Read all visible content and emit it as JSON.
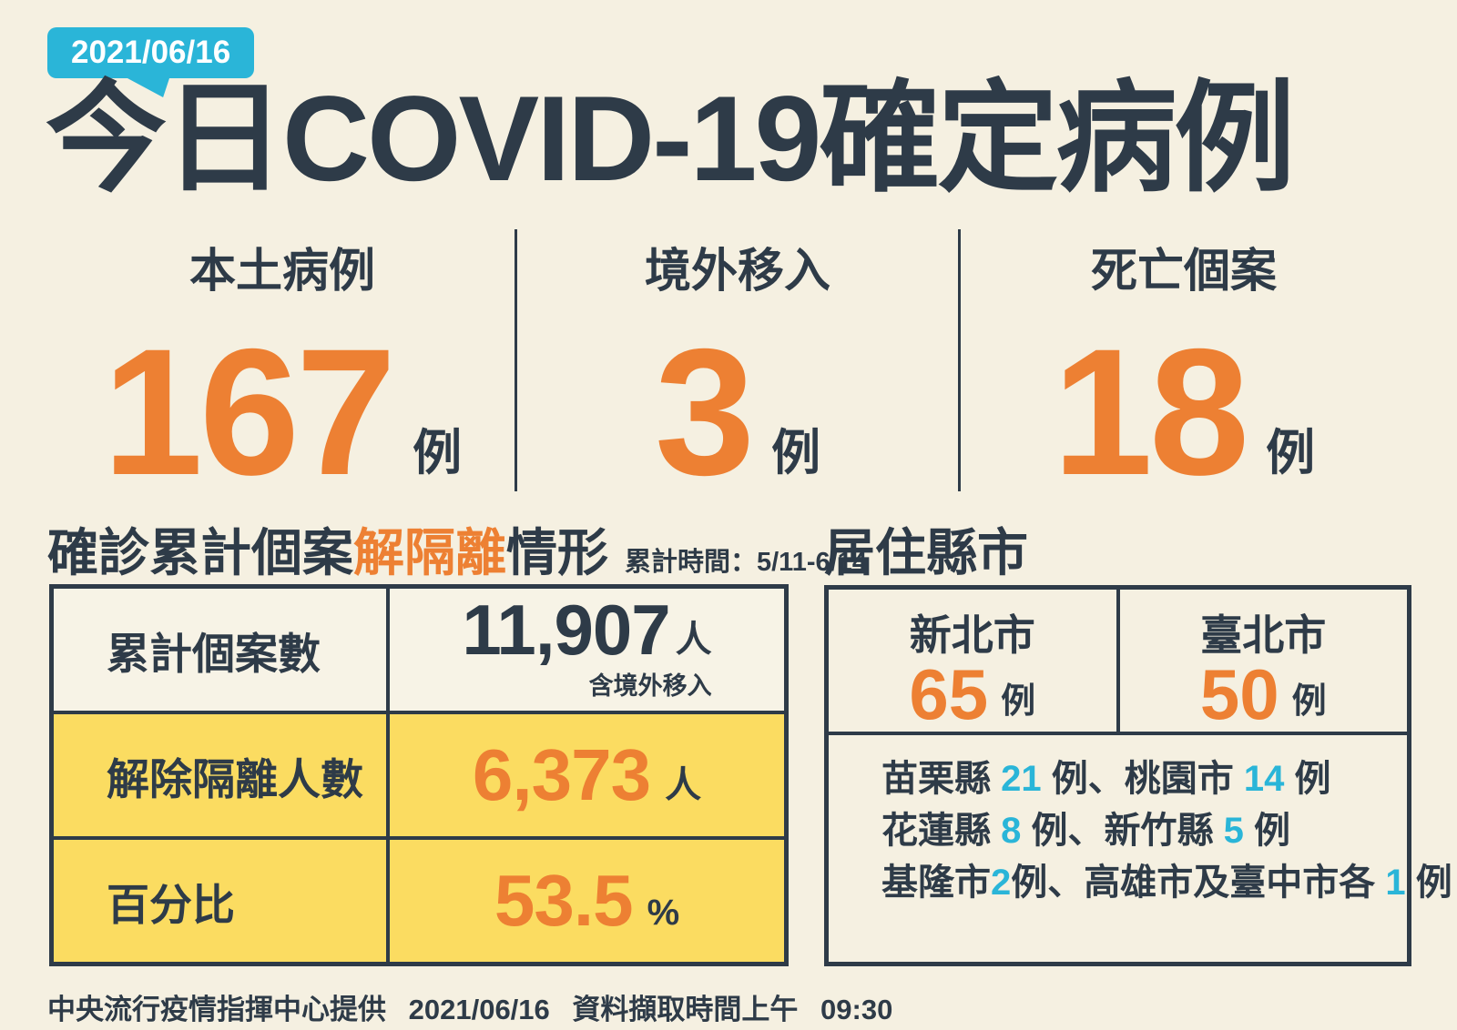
{
  "colors": {
    "background": "#F5F0E1",
    "navy": "#2E3B48",
    "orange": "#ED8033",
    "cyan": "#2AB5D8",
    "yellow": "#FBDC61"
  },
  "badge": {
    "date": "2021/06/16"
  },
  "title": "今日COVID-19確定病例",
  "stats": [
    {
      "label": "本土病例",
      "value": "167",
      "unit": "例"
    },
    {
      "label": "境外移入",
      "value": "3",
      "unit": "例"
    },
    {
      "label": "死亡個案",
      "value": "18",
      "unit": "例"
    }
  ],
  "isolation": {
    "heading_part1": "確診累計個案",
    "heading_highlight": "解隔離",
    "heading_part2": "情形",
    "period": "累計時間：5/11-6/14",
    "rows": [
      {
        "label": "累計個案數",
        "value": "11,907",
        "unit": "人",
        "note": "含境外移入"
      },
      {
        "label": "解除隔離人數",
        "value": "6,373",
        "unit": "人"
      },
      {
        "label": "百分比",
        "value": "53.5",
        "unit": "%"
      }
    ]
  },
  "residence": {
    "heading": "居住縣市",
    "cities": [
      {
        "name": "新北市",
        "value": "65",
        "unit": "例"
      },
      {
        "name": "臺北市",
        "value": "50",
        "unit": "例"
      }
    ],
    "detail_lines": [
      [
        {
          "text": "苗栗縣 "
        },
        {
          "text": "21",
          "num": true
        },
        {
          "text": " 例、桃園市 "
        },
        {
          "text": "14",
          "num": true
        },
        {
          "text": " 例"
        }
      ],
      [
        {
          "text": "花蓮縣 "
        },
        {
          "text": "8",
          "num": true
        },
        {
          "text": " 例、新竹縣 "
        },
        {
          "text": "5",
          "num": true
        },
        {
          "text": " 例"
        }
      ],
      [
        {
          "text": "基隆市"
        },
        {
          "text": "2",
          "num": true
        },
        {
          "text": "例、高雄市及臺中市各 "
        },
        {
          "text": "1",
          "num": true
        },
        {
          "text": " 例"
        }
      ]
    ]
  },
  "footer": {
    "provider": "中央流行疫情指揮中心提供",
    "date": "2021/06/16",
    "capture_label": "資料擷取時間上午",
    "capture_time": "09:30"
  }
}
